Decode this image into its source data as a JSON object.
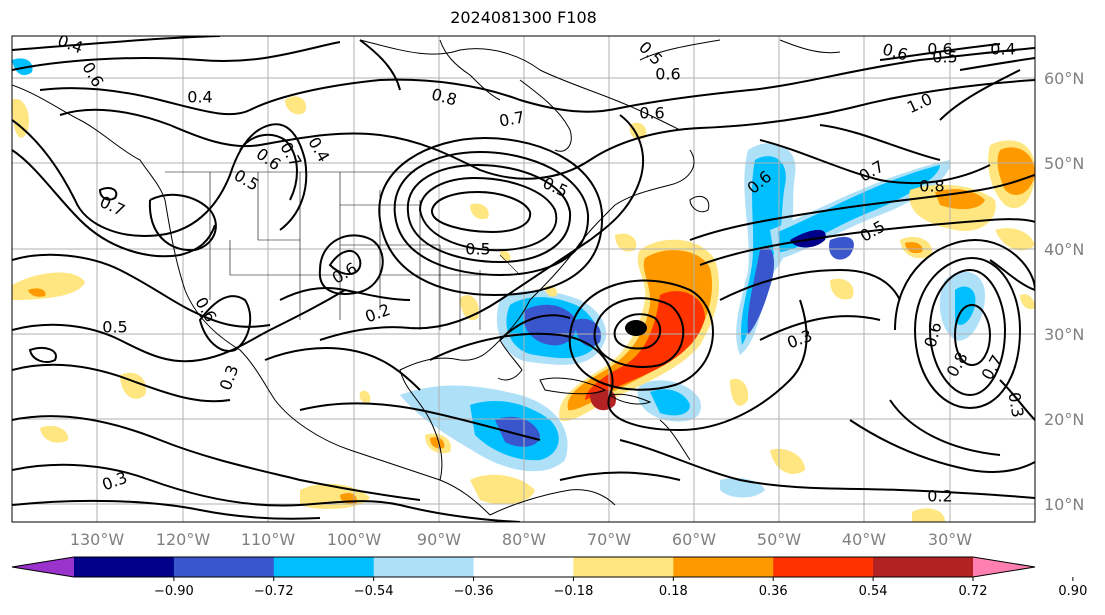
{
  "title": "2024081300 F108",
  "lon_labels": [
    "130°W",
    "120°W",
    "110°W",
    "100°W",
    "90°W",
    "80°W",
    "70°W",
    "60°W",
    "50°W",
    "40°W",
    "30°W"
  ],
  "lat_labels": [
    "60°N",
    "50°N",
    "40°N",
    "30°N",
    "20°N",
    "10°N"
  ],
  "colorbar": {
    "tick_labels": [
      "−0.90",
      "−0.72",
      "−0.54",
      "−0.36",
      "−0.18",
      "0.18",
      "0.36",
      "0.54",
      "0.72",
      "0.90"
    ],
    "colors": [
      "#9933cc",
      "#00008b",
      "#3a56cc",
      "#00bfff",
      "#aee0f8",
      "#ffffff",
      "#ffe680",
      "#ff9900",
      "#ff3300",
      "#b22222",
      "#ff80b0"
    ]
  },
  "contour_labels": [
    "0.4",
    "0.6",
    "0.4",
    "0.8",
    "0.7",
    "0.6",
    "0.6",
    "0.5",
    "0.6",
    "0.6",
    "1.0",
    "0.7",
    "0.5",
    "0.6",
    "0.4",
    "0.7",
    "0.5",
    "0.8",
    "0.7",
    "0.5",
    "0.6",
    "0.5",
    "0.2",
    "0.6",
    "0.5",
    "0.6",
    "0.3",
    "0.3",
    "0.6",
    "0.8",
    "0.7",
    "0.3",
    "0.3",
    "0.2",
    "0.4",
    "0.5"
  ],
  "shading_colors": {
    "dark_blue": "#00008b",
    "blue": "#3a56cc",
    "cyan": "#00bfff",
    "light_blue": "#aee0f8",
    "yellow": "#ffe680",
    "orange": "#ff9900",
    "red": "#ff3300",
    "dark_red": "#b22222"
  }
}
